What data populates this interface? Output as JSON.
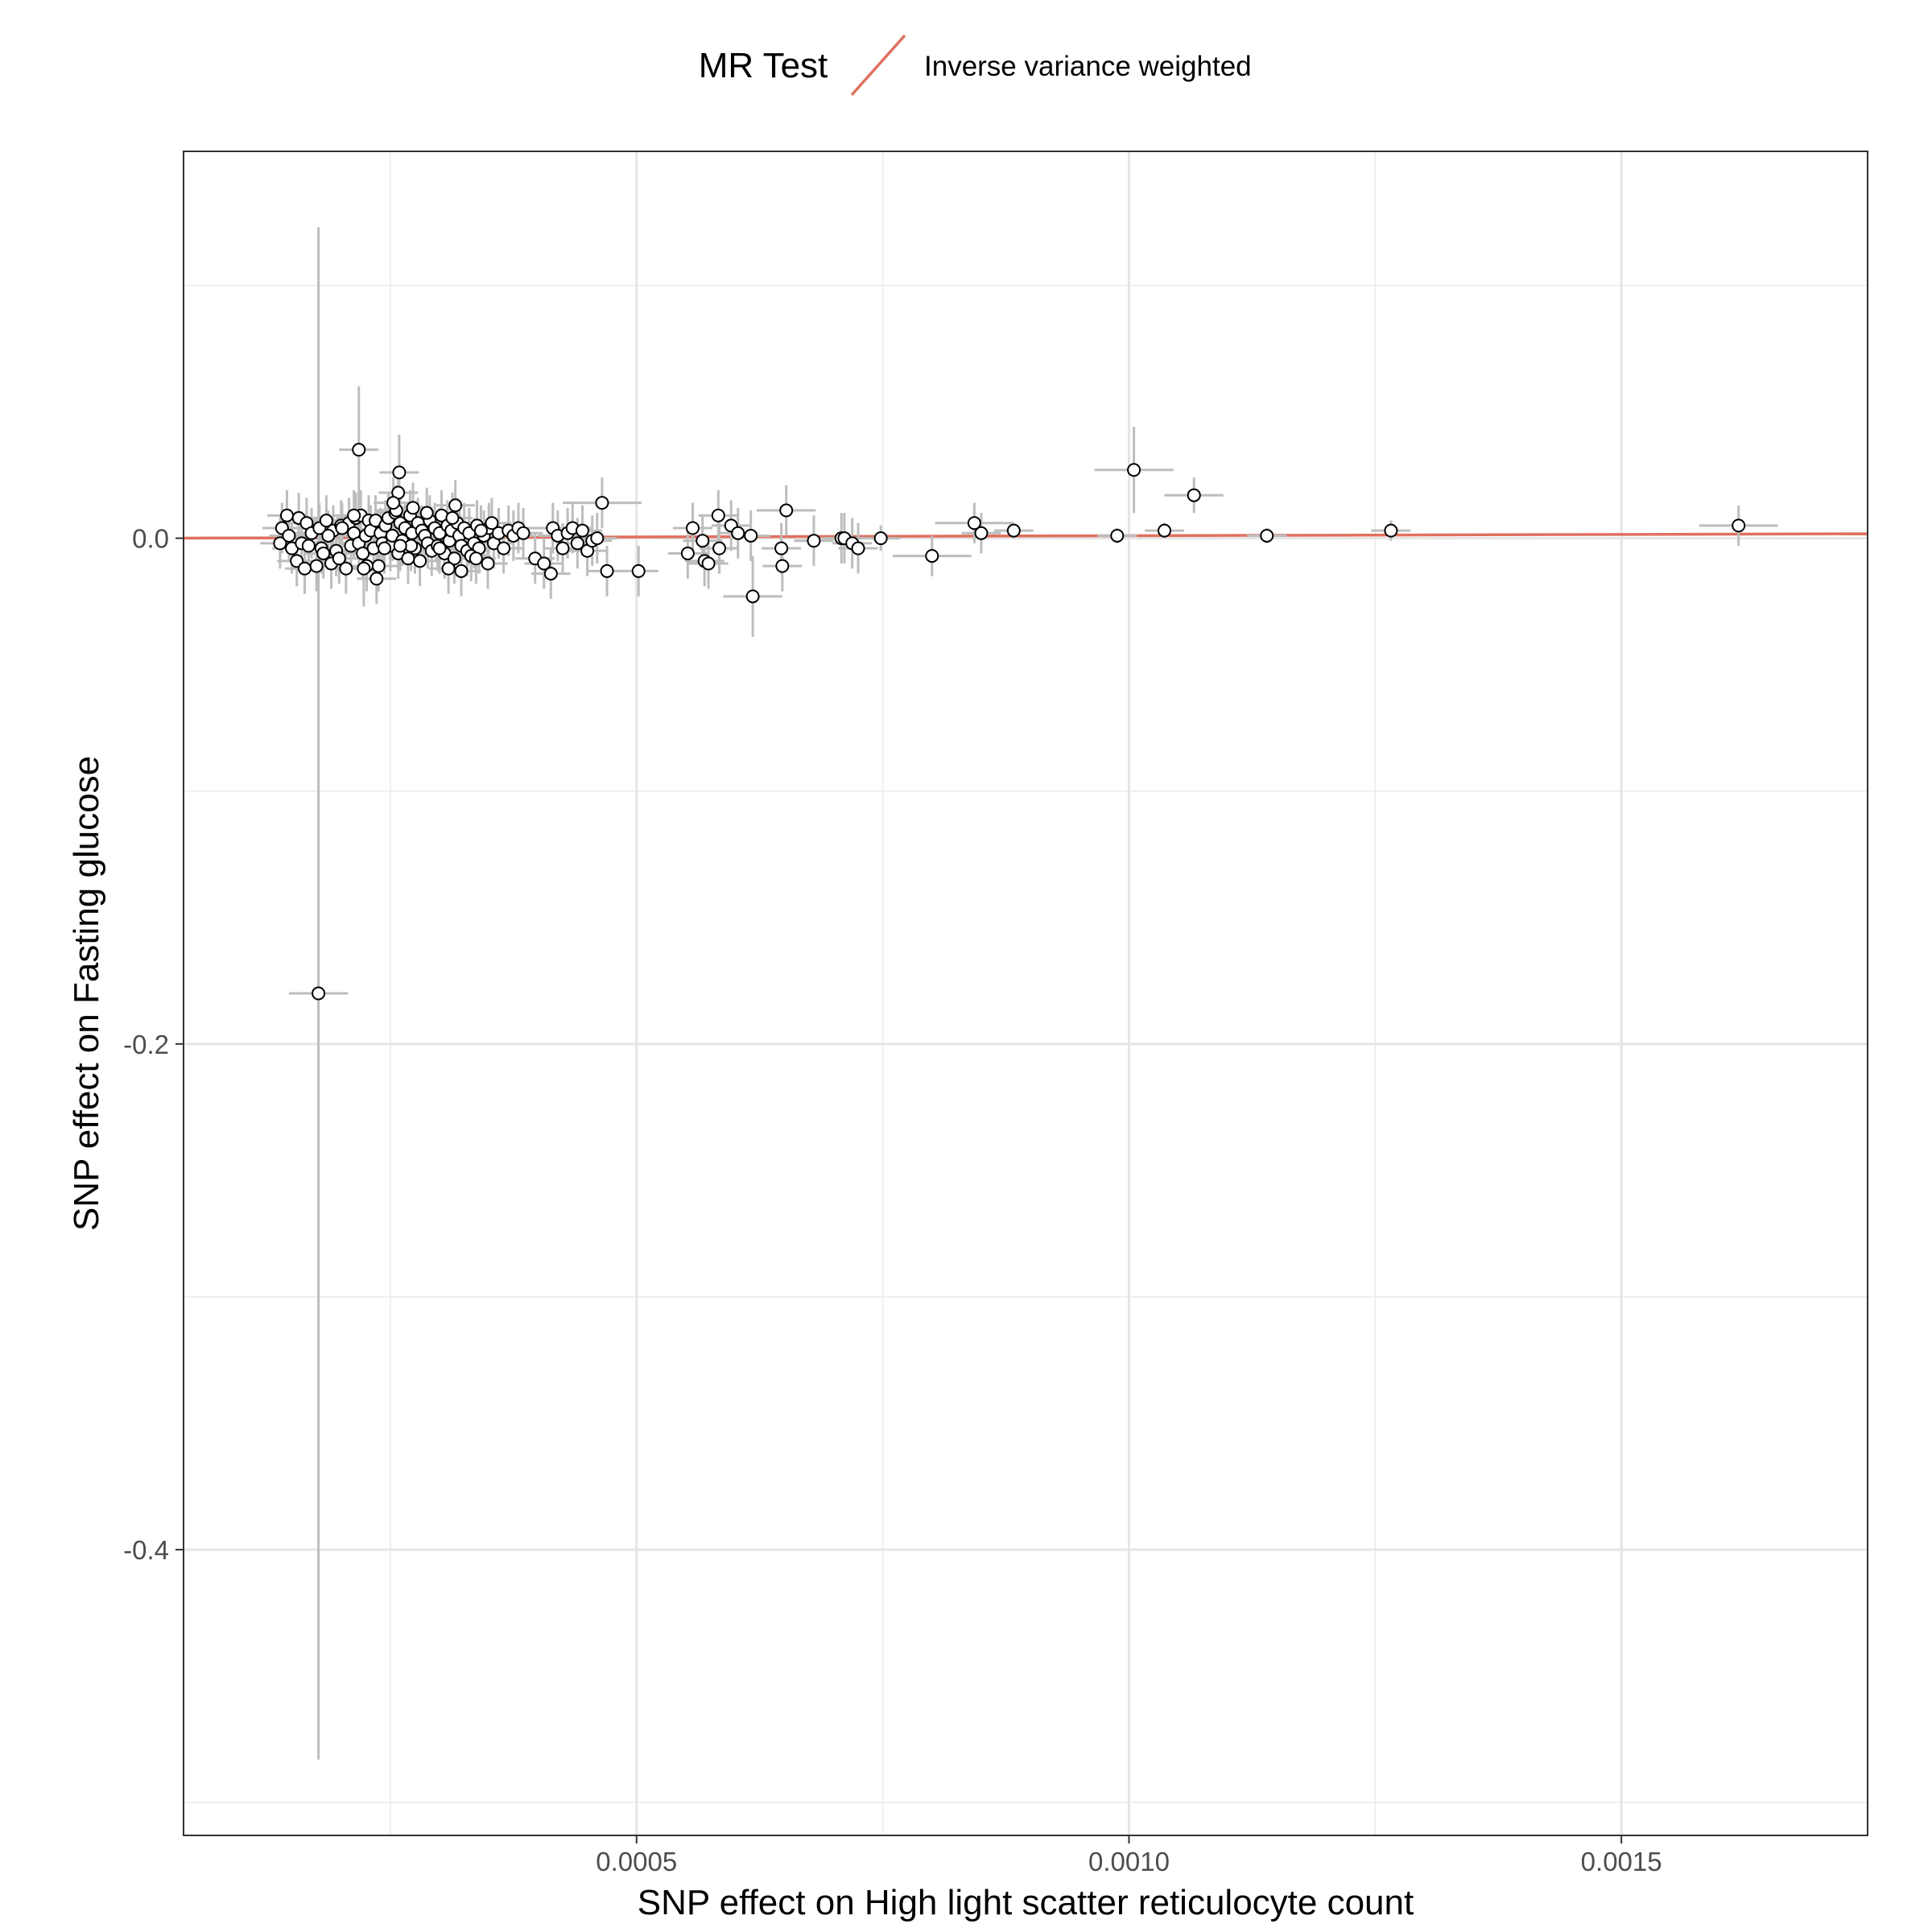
{
  "legend": {
    "title": "MR Test",
    "entries": [
      {
        "name": "Inverse variance weighted",
        "color": "#E0705F"
      }
    ]
  },
  "chart_data": {
    "type": "scatter",
    "xlabel": "SNP effect on High light scatter reticulocyte count",
    "ylabel": "SNP effect on Fasting glucose",
    "xlim": [
      4e-05,
      0.00175
    ],
    "ylim": [
      -0.513,
      0.153
    ],
    "x_ticks": [
      0.0005,
      0.001,
      0.0015
    ],
    "x_tick_labels": [
      "0.0005",
      "0.0010",
      "0.0015"
    ],
    "y_ticks": [
      0.0,
      -0.2,
      -0.4
    ],
    "y_tick_labels": [
      "0.0",
      "-0.2",
      "-0.4"
    ],
    "grid": true,
    "legend_position": "top",
    "line": {
      "name": "Inverse variance weighted",
      "intercept": 0,
      "slope": 1.0,
      "color": "#E0705F"
    },
    "points": [
      {
        "x": 0.000138,
        "y": -0.002,
        "xe": 2e-05,
        "ye": 0.01
      },
      {
        "x": 0.00014,
        "y": 0.004,
        "xe": 2e-05,
        "ye": 0.01
      },
      {
        "x": 0.000145,
        "y": 0.009,
        "xe": 2e-05,
        "ye": 0.01
      },
      {
        "x": 0.000147,
        "y": 0.001,
        "xe": 2e-05,
        "ye": 0.01
      },
      {
        "x": 0.00015,
        "y": -0.004,
        "xe": 2e-05,
        "ye": 0.01
      },
      {
        "x": 0.000155,
        "y": -0.009,
        "xe": 2e-05,
        "ye": 0.01
      },
      {
        "x": 0.000157,
        "y": 0.008,
        "xe": 2e-05,
        "ye": 0.01
      },
      {
        "x": 0.00016,
        "y": -0.002,
        "xe": 2e-05,
        "ye": 0.01
      },
      {
        "x": 0.000165,
        "y": 0.006,
        "xe": 2e-05,
        "ye": 0.01
      },
      {
        "x": 0.000167,
        "y": -0.003,
        "xe": 2e-05,
        "ye": 0.01
      },
      {
        "x": 0.00017,
        "y": 0.002,
        "xe": 2e-05,
        "ye": 0.01
      },
      {
        "x": 0.000175,
        "y": -0.011,
        "xe": 2e-05,
        "ye": 0.01
      },
      {
        "x": 0.000178,
        "y": 0.004,
        "xe": 2e-05,
        "ye": 0.01
      },
      {
        "x": 0.00018,
        "y": -0.004,
        "xe": 2e-05,
        "ye": 0.01
      },
      {
        "x": 0.000185,
        "y": 0.007,
        "xe": 2e-05,
        "ye": 0.01
      },
      {
        "x": 0.00019,
        "y": -0.01,
        "xe": 2e-05,
        "ye": 0.01
      },
      {
        "x": 0.000192,
        "y": 0.003,
        "xe": 2e-05,
        "ye": 0.01
      },
      {
        "x": 0.000195,
        "y": -0.005,
        "xe": 2e-05,
        "ye": 0.01
      },
      {
        "x": 0.0002,
        "y": 0.005,
        "xe": 2e-05,
        "ye": 0.01
      },
      {
        "x": 0.000205,
        "y": -0.012,
        "xe": 2e-05,
        "ye": 0.01
      },
      {
        "x": 0.000208,
        "y": 0.006,
        "xe": 2e-05,
        "ye": 0.01
      },
      {
        "x": 0.00021,
        "y": -0.003,
        "xe": 2e-05,
        "ye": 0.01
      },
      {
        "x": 0.000213,
        "y": 0.002,
        "xe": 2e-05,
        "ye": 0.01
      },
      {
        "x": 0.000215,
        "y": 0.008,
        "xe": 2e-05,
        "ye": 0.01
      },
      {
        "x": 0.000218,
        "y": -0.002,
        "xe": 2e-05,
        "ye": 0.01
      },
      {
        "x": 0.00022,
        "y": 0.009,
        "xe": 2e-05,
        "ye": 0.01
      },
      {
        "x": 0.000222,
        "y": -0.006,
        "xe": 2e-05,
        "ye": 0.01
      },
      {
        "x": 0.000225,
        "y": 0.001,
        "xe": 2e-05,
        "ye": 0.01
      },
      {
        "x": 0.000228,
        "y": 0.007,
        "xe": 2e-05,
        "ye": 0.01
      },
      {
        "x": 0.00023,
        "y": 0.003,
        "xe": 2e-05,
        "ye": 0.01
      },
      {
        "x": 0.000233,
        "y": -0.004,
        "xe": 2e-05,
        "ye": 0.01
      },
      {
        "x": 0.000235,
        "y": 0.007,
        "xe": 2e-05,
        "ye": 0.01
      },
      {
        "x": 0.000238,
        "y": -0.011,
        "xe": 2e-05,
        "ye": 0.01
      },
      {
        "x": 0.00024,
        "y": 0.002,
        "xe": 2e-05,
        "ye": 0.01
      },
      {
        "x": 0.000242,
        "y": -0.002,
        "xe": 2e-05,
        "ye": 0.01
      },
      {
        "x": 0.000245,
        "y": 0.005,
        "xe": 2e-05,
        "ye": 0.01
      },
      {
        "x": 0.000248,
        "y": 0.008,
        "xe": 2e-05,
        "ye": 0.01
      },
      {
        "x": 0.00025,
        "y": -0.003,
        "xe": 2e-05,
        "ye": 0.01
      },
      {
        "x": 0.000252,
        "y": 0.001,
        "xe": 2e-05,
        "ye": 0.01
      },
      {
        "x": 0.000255,
        "y": 0.01,
        "xe": 2e-05,
        "ye": 0.01
      },
      {
        "x": 0.000258,
        "y": -0.006,
        "xe": 2e-05,
        "ye": 0.01
      },
      {
        "x": 0.00026,
        "y": 0.006,
        "xe": 2e-05,
        "ye": 0.01
      },
      {
        "x": 0.000262,
        "y": -0.001,
        "xe": 2e-05,
        "ye": 0.01
      },
      {
        "x": 0.000265,
        "y": 0.004,
        "xe": 2e-05,
        "ye": 0.01
      },
      {
        "x": 0.000268,
        "y": -0.008,
        "xe": 2e-05,
        "ye": 0.01
      },
      {
        "x": 0.00027,
        "y": 0.009,
        "xe": 2e-05,
        "ye": 0.01
      },
      {
        "x": 0.000272,
        "y": 0.002,
        "xe": 2e-05,
        "ye": 0.01
      },
      {
        "x": 0.000275,
        "y": -0.004,
        "xe": 2e-05,
        "ye": 0.01
      },
      {
        "x": 0.000278,
        "y": 0.006,
        "xe": 2e-05,
        "ye": 0.01
      },
      {
        "x": 0.00028,
        "y": -0.009,
        "xe": 2e-05,
        "ye": 0.01
      },
      {
        "x": 0.000282,
        "y": 0.003,
        "xe": 2e-05,
        "ye": 0.01
      },
      {
        "x": 0.000285,
        "y": 0.001,
        "xe": 2e-05,
        "ye": 0.01
      },
      {
        "x": 0.000288,
        "y": -0.002,
        "xe": 2e-05,
        "ye": 0.01
      },
      {
        "x": 0.00029,
        "y": 0.007,
        "xe": 2e-05,
        "ye": 0.01
      },
      {
        "x": 0.000292,
        "y": -0.005,
        "xe": 2e-05,
        "ye": 0.01
      },
      {
        "x": 0.000295,
        "y": 0.004,
        "xe": 2e-05,
        "ye": 0.01
      },
      {
        "x": 0.000298,
        "y": -0.003,
        "xe": 2e-05,
        "ye": 0.01
      },
      {
        "x": 0.0003,
        "y": 0.002,
        "xe": 2e-05,
        "ye": 0.01
      },
      {
        "x": 0.000302,
        "y": 0.009,
        "xe": 2e-05,
        "ye": 0.01
      },
      {
        "x": 0.000305,
        "y": -0.006,
        "xe": 2e-05,
        "ye": 0.01
      },
      {
        "x": 0.000308,
        "y": 0.005,
        "xe": 2e-05,
        "ye": 0.01
      },
      {
        "x": 0.00031,
        "y": -0.001,
        "xe": 2e-05,
        "ye": 0.01
      },
      {
        "x": 0.000312,
        "y": 0.003,
        "xe": 2e-05,
        "ye": 0.01
      },
      {
        "x": 0.000315,
        "y": -0.008,
        "xe": 2e-05,
        "ye": 0.01
      },
      {
        "x": 0.000318,
        "y": 0.006,
        "xe": 2e-05,
        "ye": 0.01
      },
      {
        "x": 0.00032,
        "y": 0.001,
        "xe": 2e-05,
        "ye": 0.01
      },
      {
        "x": 0.000322,
        "y": -0.003,
        "xe": 2e-05,
        "ye": 0.01
      },
      {
        "x": 0.000325,
        "y": 0.004,
        "xe": 2e-05,
        "ye": 0.01
      },
      {
        "x": 0.000328,
        "y": -0.005,
        "xe": 2e-05,
        "ye": 0.01
      },
      {
        "x": 0.00033,
        "y": 0.002,
        "xe": 2e-05,
        "ye": 0.01
      },
      {
        "x": 0.000335,
        "y": -0.002,
        "xe": 2e-05,
        "ye": 0.01
      },
      {
        "x": 0.000338,
        "y": 0.005,
        "xe": 2e-05,
        "ye": 0.01
      },
      {
        "x": 0.00034,
        "y": -0.004,
        "xe": 2e-05,
        "ye": 0.01
      },
      {
        "x": 0.000345,
        "y": 0.001,
        "xe": 2e-05,
        "ye": 0.01
      },
      {
        "x": 0.00035,
        "y": 0.004,
        "xe": 2e-05,
        "ye": 0.01
      },
      {
        "x": 0.000355,
        "y": -0.002,
        "xe": 2e-05,
        "ye": 0.01
      },
      {
        "x": 0.00036,
        "y": 0.002,
        "xe": 2e-05,
        "ye": 0.01
      },
      {
        "x": 0.000365,
        "y": -0.004,
        "xe": 2e-05,
        "ye": 0.01
      },
      {
        "x": 0.00037,
        "y": 0.003,
        "xe": 2e-05,
        "ye": 0.01
      },
      {
        "x": 0.000375,
        "y": 0.001,
        "xe": 2e-05,
        "ye": 0.01
      },
      {
        "x": 0.00038,
        "y": 0.004,
        "xe": 2e-05,
        "ye": 0.01
      },
      {
        "x": 0.000385,
        "y": 0.002,
        "xe": 2e-05,
        "ye": 0.01
      },
      {
        "x": 0.000163,
        "y": -0.012,
        "xe": 2e-05,
        "ye": 0.01
      },
      {
        "x": 0.000182,
        "y": -0.006,
        "xe": 2e-05,
        "ye": 0.01
      },
      {
        "x": 0.000201,
        "y": 0.004,
        "xe": 2e-05,
        "ye": 0.01
      },
      {
        "x": 0.000187,
        "y": 0.001,
        "xe": 2e-05,
        "ye": 0.01
      },
      {
        "x": 0.000198,
        "y": -0.008,
        "xe": 2e-05,
        "ye": 0.01
      },
      {
        "x": 0.000213,
        "y": 0.009,
        "xe": 2e-05,
        "ye": 0.01
      },
      {
        "x": 0.000226,
        "y": -0.011,
        "xe": 2e-05,
        "ye": 0.01
      },
      {
        "x": 0.000256,
        "y": 0.011,
        "xe": 2e-05,
        "ye": 0.01
      },
      {
        "x": 0.000244,
        "y": -0.004,
        "xe": 2e-05,
        "ye": 0.01
      },
      {
        "x": 0.000271,
        "y": -0.003,
        "xe": 2e-05,
        "ye": 0.01
      },
      {
        "x": 0.000287,
        "y": 0.01,
        "xe": 2e-05,
        "ye": 0.01
      },
      {
        "x": 0.0003,
        "y": -0.004,
        "xe": 2e-05,
        "ye": 0.01
      },
      {
        "x": 0.000313,
        "y": 0.008,
        "xe": 2e-05,
        "ye": 0.01
      },
      {
        "x": 0.000332,
        "y": -0.007,
        "xe": 2e-05,
        "ye": 0.01
      },
      {
        "x": 0.000342,
        "y": 0.003,
        "xe": 2e-05,
        "ye": 0.01
      },
      {
        "x": 0.000353,
        "y": 0.006,
        "xe": 2e-05,
        "ye": 0.01
      },
      {
        "x": 0.000218,
        "y": 0.035,
        "xe": 2e-05,
        "ye": 0.025
      },
      {
        "x": 0.000259,
        "y": 0.026,
        "xe": 2e-05,
        "ye": 0.015
      },
      {
        "x": 0.000258,
        "y": 0.018,
        "xe": 2e-05,
        "ye": 0.01
      },
      {
        "x": 0.000253,
        "y": 0.014,
        "xe": 2e-05,
        "ye": 0.01
      },
      {
        "x": 0.000223,
        "y": -0.012,
        "xe": 2e-05,
        "ye": 0.015
      },
      {
        "x": 0.000236,
        "y": -0.016,
        "xe": 2e-05,
        "ye": 0.01
      },
      {
        "x": 0.00026,
        "y": -0.003,
        "xe": 2e-05,
        "ye": 0.01
      },
      {
        "x": 0.000273,
        "y": 0.012,
        "xe": 2e-05,
        "ye": 0.01
      },
      {
        "x": 0.000316,
        "y": 0.013,
        "xe": 2e-05,
        "ye": 0.01
      },
      {
        "x": 0.000309,
        "y": -0.012,
        "xe": 2e-05,
        "ye": 0.01
      },
      {
        "x": 0.000322,
        "y": -0.013,
        "xe": 2e-05,
        "ye": 0.01
      },
      {
        "x": 0.000337,
        "y": -0.008,
        "xe": 2e-05,
        "ye": 0.01
      },
      {
        "x": 0.000349,
        "y": -0.01,
        "xe": 2e-05,
        "ye": 0.01
      },
      {
        "x": 0.000177,
        "y": -0.18,
        "xe": 3e-05,
        "ye": 0.303
      },
      {
        "x": 0.000397,
        "y": -0.008,
        "xe": 2e-05,
        "ye": 0.01
      },
      {
        "x": 0.000406,
        "y": -0.01,
        "xe": 2e-05,
        "ye": 0.01
      },
      {
        "x": 0.000413,
        "y": -0.014,
        "xe": 2e-05,
        "ye": 0.01
      },
      {
        "x": 0.000415,
        "y": 0.004,
        "xe": 2e-05,
        "ye": 0.01
      },
      {
        "x": 0.00042,
        "y": 0.001,
        "xe": 2e-05,
        "ye": 0.01
      },
      {
        "x": 0.000425,
        "y": -0.004,
        "xe": 2e-05,
        "ye": 0.01
      },
      {
        "x": 0.00043,
        "y": 0.002,
        "xe": 2e-05,
        "ye": 0.01
      },
      {
        "x": 0.000435,
        "y": 0.004,
        "xe": 2e-05,
        "ye": 0.01
      },
      {
        "x": 0.00044,
        "y": -0.002,
        "xe": 2e-05,
        "ye": 0.01
      },
      {
        "x": 0.000445,
        "y": 0.003,
        "xe": 2e-05,
        "ye": 0.01
      },
      {
        "x": 0.00045,
        "y": -0.005,
        "xe": 2e-05,
        "ye": 0.01
      },
      {
        "x": 0.000455,
        "y": -0.001,
        "xe": 2e-05,
        "ye": 0.01
      },
      {
        "x": 0.00046,
        "y": 0.0,
        "xe": 2e-05,
        "ye": 0.01
      },
      {
        "x": 0.000465,
        "y": 0.014,
        "xe": 4e-05,
        "ye": 0.01
      },
      {
        "x": 0.00047,
        "y": -0.013,
        "xe": 2e-05,
        "ye": 0.01
      },
      {
        "x": 0.000502,
        "y": -0.013,
        "xe": 2e-05,
        "ye": 0.01
      },
      {
        "x": 0.000552,
        "y": -0.006,
        "xe": 2e-05,
        "ye": 0.01
      },
      {
        "x": 0.000557,
        "y": 0.004,
        "xe": 2e-05,
        "ye": 0.01
      },
      {
        "x": 0.000567,
        "y": -0.001,
        "xe": 2e-05,
        "ye": 0.01
      },
      {
        "x": 0.000569,
        "y": -0.009,
        "xe": 2e-05,
        "ye": 0.01
      },
      {
        "x": 0.000573,
        "y": -0.01,
        "xe": 2e-05,
        "ye": 0.01
      },
      {
        "x": 0.000583,
        "y": 0.009,
        "xe": 2e-05,
        "ye": 0.01
      },
      {
        "x": 0.000584,
        "y": -0.004,
        "xe": 2e-05,
        "ye": 0.01
      },
      {
        "x": 0.000596,
        "y": 0.005,
        "xe": 2e-05,
        "ye": 0.01
      },
      {
        "x": 0.000603,
        "y": 0.002,
        "xe": 2e-05,
        "ye": 0.01
      },
      {
        "x": 0.000616,
        "y": 0.001,
        "xe": 2e-05,
        "ye": 0.01
      },
      {
        "x": 0.000618,
        "y": -0.023,
        "xe": 3e-05,
        "ye": 0.016
      },
      {
        "x": 0.000647,
        "y": -0.004,
        "xe": 2e-05,
        "ye": 0.01
      },
      {
        "x": 0.000648,
        "y": -0.011,
        "xe": 2e-05,
        "ye": 0.01
      },
      {
        "x": 0.000652,
        "y": 0.011,
        "xe": 3e-05,
        "ye": 0.01
      },
      {
        "x": 0.00068,
        "y": -0.001,
        "xe": 2e-05,
        "ye": 0.01
      },
      {
        "x": 0.000708,
        "y": 0.0,
        "xe": 2e-05,
        "ye": 0.01
      },
      {
        "x": 0.000711,
        "y": 0.0,
        "xe": 2e-05,
        "ye": 0.01
      },
      {
        "x": 0.000719,
        "y": -0.002,
        "xe": 2e-05,
        "ye": 0.01
      },
      {
        "x": 0.000725,
        "y": -0.004,
        "xe": 2e-05,
        "ye": 0.01
      },
      {
        "x": 0.000748,
        "y": 0.0,
        "xe": 2e-05,
        "ye": 0.005
      },
      {
        "x": 0.0008,
        "y": -0.007,
        "xe": 4e-05,
        "ye": 0.008
      },
      {
        "x": 0.000843,
        "y": 0.006,
        "xe": 4e-05,
        "ye": 0.008
      },
      {
        "x": 0.00085,
        "y": 0.002,
        "xe": 2e-05,
        "ye": 0.008
      },
      {
        "x": 0.000883,
        "y": 0.003,
        "xe": 2e-05,
        "ye": 0.003
      },
      {
        "x": 0.000988,
        "y": 0.001,
        "xe": 2e-05,
        "ye": 0.003
      },
      {
        "x": 0.001005,
        "y": 0.027,
        "xe": 4e-05,
        "ye": 0.017
      },
      {
        "x": 0.001036,
        "y": 0.003,
        "xe": 2e-05,
        "ye": 0.003
      },
      {
        "x": 0.001066,
        "y": 0.017,
        "xe": 3e-05,
        "ye": 0.007
      },
      {
        "x": 0.00114,
        "y": 0.001,
        "xe": 2e-05,
        "ye": 0.003
      },
      {
        "x": 0.001266,
        "y": 0.003,
        "xe": 2e-05,
        "ye": 0.004
      },
      {
        "x": 0.001619,
        "y": 0.005,
        "xe": 4e-05,
        "ye": 0.008
      }
    ]
  }
}
